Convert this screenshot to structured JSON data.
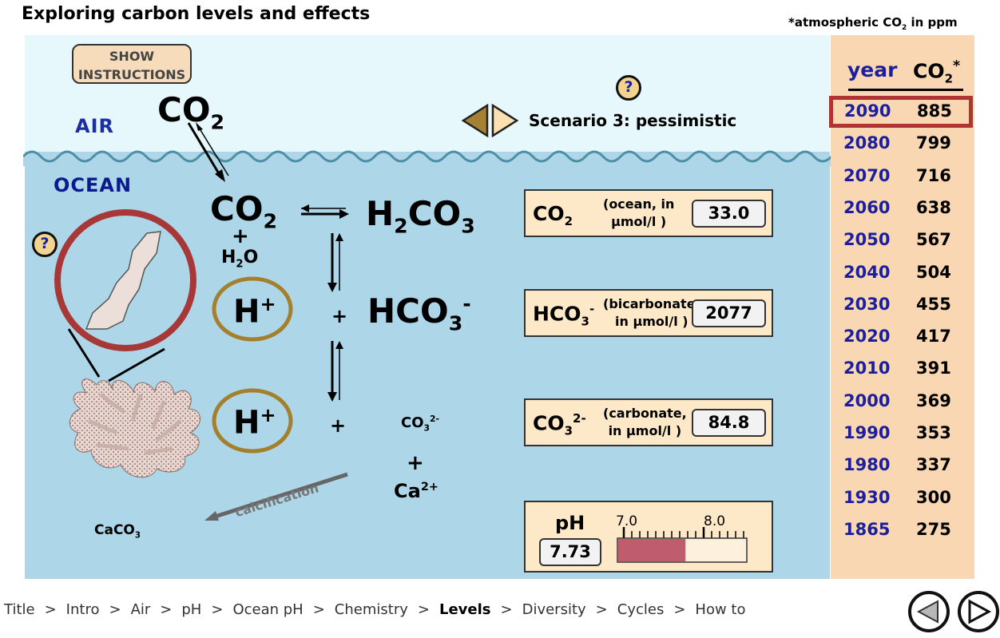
{
  "page": {
    "title": "Exploring carbon levels and effects",
    "ppm_note_prefix": "*atmospheric CO",
    "ppm_note_sub": "2",
    "ppm_note_suffix": " in ppm"
  },
  "buttons": {
    "show_instructions_line1": "SHOW",
    "show_instructions_line2": "INSTRUCTIONS",
    "help_symbol": "?"
  },
  "regions": {
    "air": "AIR",
    "ocean": "OCEAN"
  },
  "scenario": {
    "label": "Scenario 3: pessimistic"
  },
  "chemistry": {
    "co2": "CO",
    "two": "2",
    "plus": "+",
    "h2o_h": "H",
    "h2o_o": "O",
    "h2co3_h": "H",
    "h2co3_co": "CO",
    "three": "3",
    "h": "H",
    "hplus_sup": "+",
    "hco3": "HCO",
    "minus": "-",
    "co3_small": "CO",
    "two_minus": "2-",
    "ca": "Ca",
    "two_plus": "2+",
    "caco3": "CaCO",
    "calcification": "calcification"
  },
  "measurements": {
    "co2_ocean": {
      "formula": "CO",
      "sub": "2",
      "desc_line1": "(ocean, in",
      "desc_line2": "µmol/l )",
      "value": "33.0"
    },
    "bicarbonate": {
      "formula": "HCO",
      "sub": "3",
      "sup": "-",
      "desc_line1": "(bicarbonate,",
      "desc_line2": "in µmol/l )",
      "value": "2077"
    },
    "carbonate": {
      "formula": "CO",
      "sub": "3",
      "sup": "2-",
      "desc_line1": "(carbonate,",
      "desc_line2": "in µmol/l )",
      "value": "84.8"
    },
    "ph": {
      "label": "pH",
      "value": "7.73",
      "scale_min_label": "7.0",
      "scale_mid_label": "8.0",
      "fill_fraction": 0.52,
      "fill_color": "#bf5d6f"
    }
  },
  "table": {
    "header_year": "year",
    "header_co2": "CO",
    "header_co2_sub": "2",
    "header_co2_sup": "*",
    "rows": [
      {
        "year": "2090",
        "ppm": "885",
        "selected": true
      },
      {
        "year": "2080",
        "ppm": "799"
      },
      {
        "year": "2070",
        "ppm": "716"
      },
      {
        "year": "2060",
        "ppm": "638"
      },
      {
        "year": "2050",
        "ppm": "567"
      },
      {
        "year": "2040",
        "ppm": "504"
      },
      {
        "year": "2030",
        "ppm": "455"
      },
      {
        "year": "2020",
        "ppm": "417"
      },
      {
        "year": "2010",
        "ppm": "391"
      },
      {
        "year": "2000",
        "ppm": "369"
      },
      {
        "year": "1990",
        "ppm": "353"
      },
      {
        "year": "1980",
        "ppm": "337"
      },
      {
        "year": "1930",
        "ppm": "300"
      },
      {
        "year": "1865",
        "ppm": "275"
      }
    ]
  },
  "breadcrumb": {
    "separator": ">",
    "items": [
      {
        "label": "Title"
      },
      {
        "label": "Intro"
      },
      {
        "label": "Air"
      },
      {
        "label": "pH"
      },
      {
        "label": "Ocean pH"
      },
      {
        "label": "Chemistry"
      },
      {
        "label": "Levels",
        "current": true
      },
      {
        "label": "Diversity"
      },
      {
        "label": "Cycles"
      },
      {
        "label": "How to"
      }
    ]
  },
  "icons": {
    "prev_scenario": "triangle-left-icon",
    "next_scenario": "triangle-right-icon",
    "prev_page": "circle-back-icon",
    "next_page": "circle-forward-icon"
  },
  "colors": {
    "air_bg": "#e6f8fb",
    "ocean_bg": "#add7e9",
    "table_bg": "#f8d7b2",
    "box_bg": "#fde8c8",
    "selected_border": "#b03434",
    "ring_gold": "#a47f2c"
  }
}
